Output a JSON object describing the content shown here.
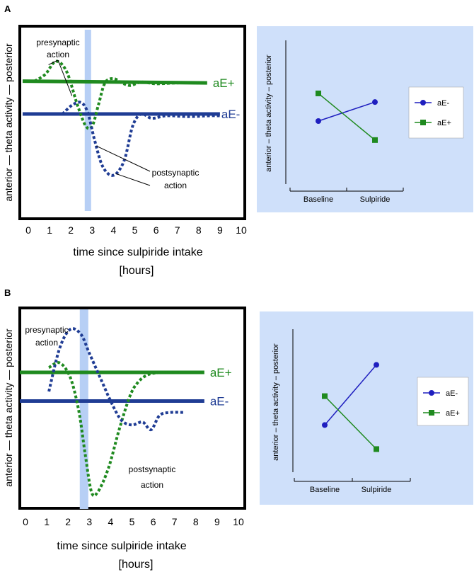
{
  "colors": {
    "green": "#1f8a1f",
    "blue": "#1f3c94",
    "blue_dot": "#1f1fbf",
    "panel_bg": "#cfe0fa",
    "band": "#b7cff5"
  },
  "panels": [
    {
      "label": "A",
      "ylabel": "anterior  —  theta activity  —  posterior",
      "xlabel": "time since sulpiride intake",
      "xunit": "[hours]",
      "annotation_pre": [
        "presynaptic",
        "action"
      ],
      "annotation_post": [
        "postsynaptic",
        "action"
      ]
    },
    {
      "label": "B",
      "ylabel": "anterior  —  theta activity  —  posterior",
      "xlabel": "time since sulpiride intake",
      "xunit": "[hours]",
      "annotation_pre": [
        "presynaptic",
        "action"
      ],
      "annotation_post": [
        "postsynaptic",
        "action"
      ]
    }
  ],
  "chart_data": [
    {
      "panel": "A-left",
      "type": "line",
      "title": "",
      "xlabel": "time since sulpiride intake [hours]",
      "ylabel": "anterior — theta activity — posterior",
      "xlim": [
        -0.3,
        10.3
      ],
      "ylim": [
        -1,
        1
      ],
      "xticks": [
        0,
        1,
        2,
        3,
        4,
        5,
        6,
        7,
        8,
        9,
        10
      ],
      "shaded_interval": [
        2.65,
        2.95
      ],
      "series": [
        {
          "name": "aE+",
          "style": "solid",
          "color": "green",
          "x": [
            0,
            8.4
          ],
          "y": [
            0.47,
            0.45
          ]
        },
        {
          "name": "aE-",
          "style": "solid",
          "color": "blue",
          "x": [
            0,
            9.0
          ],
          "y": [
            0.09,
            0.09
          ]
        },
        {
          "name": "aE+ response",
          "style": "dotted",
          "color": "green",
          "x": [
            0.3,
            0.8,
            1.3,
            1.8,
            2.3,
            2.7,
            3.0,
            3.3,
            3.6,
            4.0,
            4.4,
            4.8,
            5.3,
            6.0,
            7.0,
            8.0
          ],
          "y": [
            0.47,
            0.55,
            0.7,
            0.58,
            0.2,
            -0.05,
            -0.05,
            0.2,
            0.45,
            0.5,
            0.45,
            0.42,
            0.46,
            0.44,
            0.45,
            0.45
          ]
        },
        {
          "name": "aE- response",
          "style": "dotted",
          "color": "blue",
          "x": [
            1.6,
            2.1,
            2.5,
            2.8,
            3.1,
            3.5,
            4.0,
            4.5,
            4.9,
            5.3,
            5.8,
            6.5,
            7.5,
            8.5,
            9.0
          ],
          "y": [
            0.09,
            0.2,
            0.22,
            0.1,
            -0.2,
            -0.52,
            -0.62,
            -0.45,
            -0.05,
            0.09,
            0.04,
            0.07,
            0.06,
            0.07,
            0.07
          ]
        }
      ],
      "labels": [
        "aE+",
        "aE-"
      ]
    },
    {
      "panel": "A-right",
      "type": "line",
      "xlabel": "",
      "ylabel": "anterior – theta activity – posterior",
      "categories": [
        "Baseline",
        "Sulpiride"
      ],
      "ylim": [
        0,
        1
      ],
      "series": [
        {
          "name": "aE-",
          "marker": "circle",
          "values": [
            0.5,
            0.72
          ]
        },
        {
          "name": "aE+",
          "marker": "square",
          "values": [
            0.82,
            0.28
          ]
        }
      ]
    },
    {
      "panel": "B-left",
      "type": "line",
      "xlabel": "time since sulpiride intake [hours]",
      "ylabel": "anterior — theta activity — posterior",
      "xlim": [
        -0.3,
        10.3
      ],
      "ylim": [
        -1,
        1
      ],
      "xticks": [
        0,
        1,
        2,
        3,
        4,
        5,
        6,
        7,
        8,
        9,
        10
      ],
      "shaded_interval": [
        2.55,
        2.95
      ],
      "series": [
        {
          "name": "aE+",
          "style": "solid",
          "color": "green",
          "x": [
            0,
            8.4
          ],
          "y": [
            0.4,
            0.4
          ]
        },
        {
          "name": "aE-",
          "style": "solid",
          "color": "blue",
          "x": [
            0,
            8.4
          ],
          "y": [
            0.1,
            0.1
          ]
        },
        {
          "name": "aE+ response",
          "style": "dotted",
          "color": "green",
          "x": [
            1.1,
            1.6,
            2.1,
            2.5,
            2.8,
            3.1,
            3.4,
            3.9,
            4.4,
            4.9,
            5.3,
            5.8,
            6.5,
            7.2
          ],
          "y": [
            0.45,
            0.5,
            0.35,
            0.0,
            -0.45,
            -0.85,
            -0.85,
            -0.6,
            -0.2,
            0.15,
            0.3,
            0.38,
            0.4,
            0.4
          ]
        },
        {
          "name": "aE- response",
          "style": "dotted",
          "color": "blue",
          "x": [
            1.1,
            1.6,
            2.1,
            2.6,
            3.0,
            3.5,
            4.0,
            4.5,
            5.0,
            5.5,
            5.9,
            6.3,
            6.8,
            7.5
          ],
          "y": [
            0.2,
            0.65,
            0.85,
            0.8,
            0.6,
            0.35,
            0.1,
            -0.1,
            -0.15,
            -0.12,
            -0.2,
            -0.05,
            -0.02,
            -0.02
          ]
        }
      ],
      "labels": [
        "aE+",
        "aE-"
      ]
    },
    {
      "panel": "B-right",
      "type": "line",
      "ylabel": "anterior – theta activity – posterior",
      "categories": [
        "Baseline",
        "Sulpiride"
      ],
      "ylim": [
        0,
        1
      ],
      "series": [
        {
          "name": "aE-",
          "marker": "circle",
          "values": [
            0.38,
            0.88
          ]
        },
        {
          "name": "aE+",
          "marker": "square",
          "values": [
            0.62,
            0.18
          ]
        }
      ]
    }
  ]
}
